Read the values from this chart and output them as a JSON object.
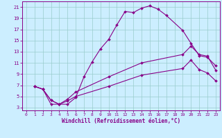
{
  "xlabel": "Windchill (Refroidissement éolien,°C)",
  "bg_color": "#cceeff",
  "line_color": "#880088",
  "grid_color": "#99cccc",
  "xlim": [
    -0.5,
    23.5
  ],
  "ylim": [
    2.5,
    22.0
  ],
  "xticks": [
    0,
    1,
    2,
    3,
    4,
    5,
    6,
    7,
    8,
    9,
    10,
    11,
    12,
    13,
    14,
    15,
    16,
    17,
    18,
    19,
    20,
    21,
    22,
    23
  ],
  "yticks": [
    3,
    5,
    7,
    9,
    11,
    13,
    15,
    17,
    19,
    21
  ],
  "curve1_x": [
    1,
    2,
    3,
    4,
    5,
    6,
    7,
    8,
    9,
    10,
    11,
    12,
    13,
    14,
    15,
    16,
    17,
    19,
    20,
    21,
    22,
    23
  ],
  "curve1_y": [
    6.8,
    6.3,
    4.3,
    3.6,
    3.6,
    4.8,
    8.5,
    11.2,
    13.5,
    15.2,
    17.8,
    20.2,
    20.0,
    20.8,
    21.2,
    20.6,
    19.5,
    16.8,
    14.5,
    12.3,
    12.0,
    10.5
  ],
  "curve2_x": [
    1,
    2,
    3,
    4,
    5,
    6,
    10,
    14,
    19,
    20,
    21,
    22,
    23
  ],
  "curve2_y": [
    6.8,
    6.3,
    4.3,
    3.6,
    4.5,
    5.8,
    8.5,
    11.0,
    12.5,
    14.0,
    12.5,
    12.2,
    9.7
  ],
  "curve3_x": [
    1,
    2,
    3,
    4,
    5,
    6,
    10,
    14,
    19,
    20,
    21,
    22,
    23
  ],
  "curve3_y": [
    6.8,
    6.3,
    3.6,
    3.6,
    4.2,
    5.0,
    6.8,
    8.8,
    10.0,
    11.5,
    9.8,
    9.2,
    7.8
  ]
}
